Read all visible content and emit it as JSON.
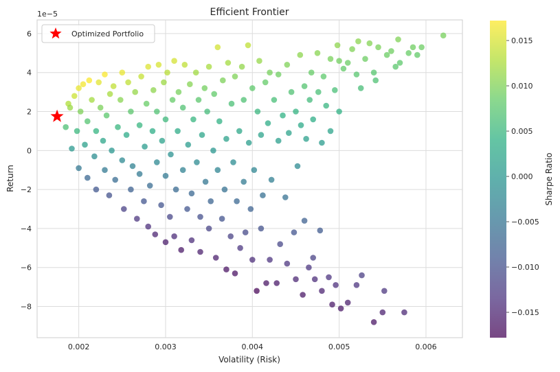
{
  "chart_data": {
    "type": "scatter",
    "title": "Efficient Frontier",
    "xlabel": "Volatility (Risk)",
    "ylabel": "Return",
    "y_offset_label": "1e−5",
    "xlim": [
      0.00152,
      0.00642
    ],
    "ylim": [
      -9.6,
      6.7
    ],
    "y_scale_factor": "1e-5",
    "x_ticks": [
      {
        "value": 0.002,
        "label": "0.002"
      },
      {
        "value": 0.003,
        "label": "0.003"
      },
      {
        "value": 0.004,
        "label": "0.004"
      },
      {
        "value": 0.005,
        "label": "0.005"
      },
      {
        "value": 0.006,
        "label": "0.006"
      }
    ],
    "y_ticks": [
      {
        "value": -8,
        "label": "−8"
      },
      {
        "value": -6,
        "label": "−6"
      },
      {
        "value": -4,
        "label": "−4"
      },
      {
        "value": -2,
        "label": "−2"
      },
      {
        "value": 0,
        "label": "0"
      },
      {
        "value": 2,
        "label": "2"
      },
      {
        "value": 4,
        "label": "4"
      },
      {
        "value": 6,
        "label": "6"
      }
    ],
    "grid": true,
    "legend": {
      "position": "top-left",
      "entries": [
        "Optimized Portfolio"
      ]
    },
    "colorbar": {
      "label": "Sharpe Ratio",
      "colormap": "viridis",
      "range": [
        -0.0178,
        0.0172
      ],
      "ticks": [
        {
          "value": 0.015,
          "label": "0.015"
        },
        {
          "value": 0.01,
          "label": "0.010"
        },
        {
          "value": 0.005,
          "label": "0.005"
        },
        {
          "value": 0.0,
          "label": "0.000"
        },
        {
          "value": -0.005,
          "label": "−0.005"
        },
        {
          "value": -0.01,
          "label": "−0.010"
        },
        {
          "value": -0.015,
          "label": "−0.015"
        }
      ]
    },
    "optimized_portfolio": {
      "x": 0.00175,
      "y": 1.75,
      "color": "#ff0000",
      "marker": "star"
    },
    "series": [
      {
        "marker": "circle",
        "points": [
          [
            0.00185,
            1.2
          ],
          [
            0.00188,
            2.4
          ],
          [
            0.0019,
            2.2
          ],
          [
            0.00192,
            0.1
          ],
          [
            0.00195,
            2.8
          ],
          [
            0.00198,
            1.0
          ],
          [
            0.002,
            3.2
          ],
          [
            0.002,
            -0.9
          ],
          [
            0.00202,
            2.0
          ],
          [
            0.00205,
            3.4
          ],
          [
            0.00207,
            0.3
          ],
          [
            0.0021,
            -1.4
          ],
          [
            0.0021,
            1.5
          ],
          [
            0.00212,
            3.6
          ],
          [
            0.00215,
            2.6
          ],
          [
            0.00218,
            -0.3
          ],
          [
            0.0022,
            -2.0
          ],
          [
            0.0022,
            1.0
          ],
          [
            0.00223,
            3.5
          ],
          [
            0.00225,
            2.2
          ],
          [
            0.00228,
            0.5
          ],
          [
            0.0023,
            -1.0
          ],
          [
            0.0023,
            3.9
          ],
          [
            0.00232,
            1.8
          ],
          [
            0.00235,
            -2.3
          ],
          [
            0.00236,
            2.9
          ],
          [
            0.00238,
            0.0
          ],
          [
            0.0024,
            3.3
          ],
          [
            0.00242,
            -1.5
          ],
          [
            0.00245,
            1.2
          ],
          [
            0.00248,
            2.6
          ],
          [
            0.0025,
            -0.5
          ],
          [
            0.0025,
            4.0
          ],
          [
            0.00252,
            -3.0
          ],
          [
            0.00255,
            0.8
          ],
          [
            0.00257,
            3.5
          ],
          [
            0.0026,
            -2.0
          ],
          [
            0.0026,
            2.0
          ],
          [
            0.00262,
            -0.8
          ],
          [
            0.00265,
            3.0
          ],
          [
            0.00267,
            -3.5
          ],
          [
            0.0027,
            1.3
          ],
          [
            0.0027,
            -1.2
          ],
          [
            0.00272,
            3.8
          ],
          [
            0.00275,
            -2.6
          ],
          [
            0.00276,
            0.2
          ],
          [
            0.00278,
            2.4
          ],
          [
            0.0028,
            -3.9
          ],
          [
            0.0028,
            4.3
          ],
          [
            0.00282,
            -1.8
          ],
          [
            0.00285,
            1.0
          ],
          [
            0.00286,
            3.1
          ],
          [
            0.00288,
            -4.3
          ],
          [
            0.0029,
            -0.6
          ],
          [
            0.0029,
            2.0
          ],
          [
            0.00292,
            4.4
          ],
          [
            0.00295,
            -2.8
          ],
          [
            0.00296,
            0.5
          ],
          [
            0.00298,
            3.5
          ],
          [
            0.003,
            -4.7
          ],
          [
            0.003,
            -1.3
          ],
          [
            0.003,
            1.6
          ],
          [
            0.00302,
            4.0
          ],
          [
            0.00305,
            -3.4
          ],
          [
            0.00306,
            -0.2
          ],
          [
            0.00308,
            2.6
          ],
          [
            0.0031,
            -4.4
          ],
          [
            0.0031,
            4.6
          ],
          [
            0.00312,
            -2.0
          ],
          [
            0.00314,
            1.0
          ],
          [
            0.00315,
            3.0
          ],
          [
            0.00318,
            -5.1
          ],
          [
            0.0032,
            -1.0
          ],
          [
            0.0032,
            2.2
          ],
          [
            0.00322,
            4.4
          ],
          [
            0.00325,
            -3.0
          ],
          [
            0.00326,
            0.3
          ],
          [
            0.00328,
            3.4
          ],
          [
            0.0033,
            -4.6
          ],
          [
            0.0033,
            -2.2
          ],
          [
            0.00332,
            1.6
          ],
          [
            0.00335,
            4.0
          ],
          [
            0.00336,
            -0.6
          ],
          [
            0.00338,
            2.6
          ],
          [
            0.0034,
            -5.2
          ],
          [
            0.0034,
            -3.4
          ],
          [
            0.00342,
            0.8
          ],
          [
            0.00345,
            3.2
          ],
          [
            0.00346,
            -1.6
          ],
          [
            0.00348,
            2.0
          ],
          [
            0.0035,
            -4.0
          ],
          [
            0.0035,
            4.3
          ],
          [
            0.00352,
            -2.6
          ],
          [
            0.00355,
            0.0
          ],
          [
            0.00356,
            2.9
          ],
          [
            0.00358,
            -5.5
          ],
          [
            0.0036,
            -1.0
          ],
          [
            0.0036,
            5.3
          ],
          [
            0.00362,
            1.5
          ],
          [
            0.00365,
            -3.5
          ],
          [
            0.00366,
            3.6
          ],
          [
            0.00368,
            -2.0
          ],
          [
            0.0037,
            -6.1
          ],
          [
            0.0037,
            0.6
          ],
          [
            0.00372,
            4.5
          ],
          [
            0.00375,
            -4.4
          ],
          [
            0.00376,
            2.4
          ],
          [
            0.00378,
            -0.6
          ],
          [
            0.0038,
            -6.3
          ],
          [
            0.0038,
            3.8
          ],
          [
            0.00382,
            -2.6
          ],
          [
            0.00385,
            1.0
          ],
          [
            0.00386,
            -5.0
          ],
          [
            0.00388,
            4.3
          ],
          [
            0.0039,
            -1.6
          ],
          [
            0.0039,
            2.6
          ],
          [
            0.00392,
            -4.2
          ],
          [
            0.00395,
            5.4
          ],
          [
            0.00396,
            0.4
          ],
          [
            0.00398,
            -3.0
          ],
          [
            0.004,
            -5.6
          ],
          [
            0.004,
            3.2
          ],
          [
            0.00402,
            -1.0
          ],
          [
            0.00405,
            -7.2
          ],
          [
            0.00406,
            2.0
          ],
          [
            0.00408,
            4.6
          ],
          [
            0.0041,
            -4.0
          ],
          [
            0.0041,
            0.8
          ],
          [
            0.00412,
            -2.3
          ],
          [
            0.00415,
            3.5
          ],
          [
            0.00416,
            -6.8
          ],
          [
            0.00418,
            1.4
          ],
          [
            0.0042,
            -5.6
          ],
          [
            0.0042,
            4.0
          ],
          [
            0.00422,
            -1.5
          ],
          [
            0.00425,
            2.6
          ],
          [
            0.00428,
            -6.8
          ],
          [
            0.0043,
            0.5
          ],
          [
            0.0043,
            3.9
          ],
          [
            0.00432,
            -4.8
          ],
          [
            0.00435,
            1.8
          ],
          [
            0.00438,
            -2.4
          ],
          [
            0.0044,
            4.4
          ],
          [
            0.0044,
            -5.8
          ],
          [
            0.00442,
            0.9
          ],
          [
            0.00445,
            3.0
          ],
          [
            0.00448,
            -4.2
          ],
          [
            0.0045,
            -6.6
          ],
          [
            0.0045,
            2.0
          ],
          [
            0.00452,
            -0.8
          ],
          [
            0.00455,
            4.9
          ],
          [
            0.00456,
            1.3
          ],
          [
            0.00458,
            -7.4
          ],
          [
            0.0046,
            3.3
          ],
          [
            0.0046,
            -3.6
          ],
          [
            0.00462,
            0.6
          ],
          [
            0.00465,
            -6.0
          ],
          [
            0.00466,
            2.6
          ],
          [
            0.00468,
            4.0
          ],
          [
            0.0047,
            -5.5
          ],
          [
            0.0047,
            1.6
          ],
          [
            0.00472,
            -6.6
          ],
          [
            0.00475,
            5.0
          ],
          [
            0.00476,
            3.0
          ],
          [
            0.00478,
            -4.1
          ],
          [
            0.0048,
            -7.2
          ],
          [
            0.0048,
            0.4
          ],
          [
            0.00482,
            3.8
          ],
          [
            0.00485,
            2.3
          ],
          [
            0.00488,
            -6.5
          ],
          [
            0.0049,
            4.7
          ],
          [
            0.0049,
            1.0
          ],
          [
            0.00492,
            -7.9
          ],
          [
            0.00495,
            3.1
          ],
          [
            0.00496,
            -6.9
          ],
          [
            0.00498,
            5.4
          ],
          [
            0.005,
            4.6
          ],
          [
            0.005,
            2.0
          ],
          [
            0.00502,
            -8.1
          ],
          [
            0.00505,
            4.2
          ],
          [
            0.0051,
            -7.8
          ],
          [
            0.0051,
            4.5
          ],
          [
            0.00515,
            5.2
          ],
          [
            0.0052,
            -6.9
          ],
          [
            0.0052,
            3.9
          ],
          [
            0.00522,
            5.6
          ],
          [
            0.00525,
            3.2
          ],
          [
            0.00526,
            -6.4
          ],
          [
            0.0053,
            4.7
          ],
          [
            0.00535,
            5.5
          ],
          [
            0.0054,
            4.0
          ],
          [
            0.0054,
            -8.8
          ],
          [
            0.00542,
            3.6
          ],
          [
            0.00545,
            5.3
          ],
          [
            0.0055,
            -8.3
          ],
          [
            0.00552,
            -7.2
          ],
          [
            0.00555,
            4.9
          ],
          [
            0.0056,
            5.1
          ],
          [
            0.00565,
            4.3
          ],
          [
            0.00568,
            5.7
          ],
          [
            0.0057,
            4.5
          ],
          [
            0.00575,
            -8.3
          ],
          [
            0.0058,
            5.0
          ],
          [
            0.00585,
            5.3
          ],
          [
            0.0059,
            4.9
          ],
          [
            0.00595,
            5.3
          ],
          [
            0.0062,
            5.9
          ]
        ]
      }
    ]
  }
}
